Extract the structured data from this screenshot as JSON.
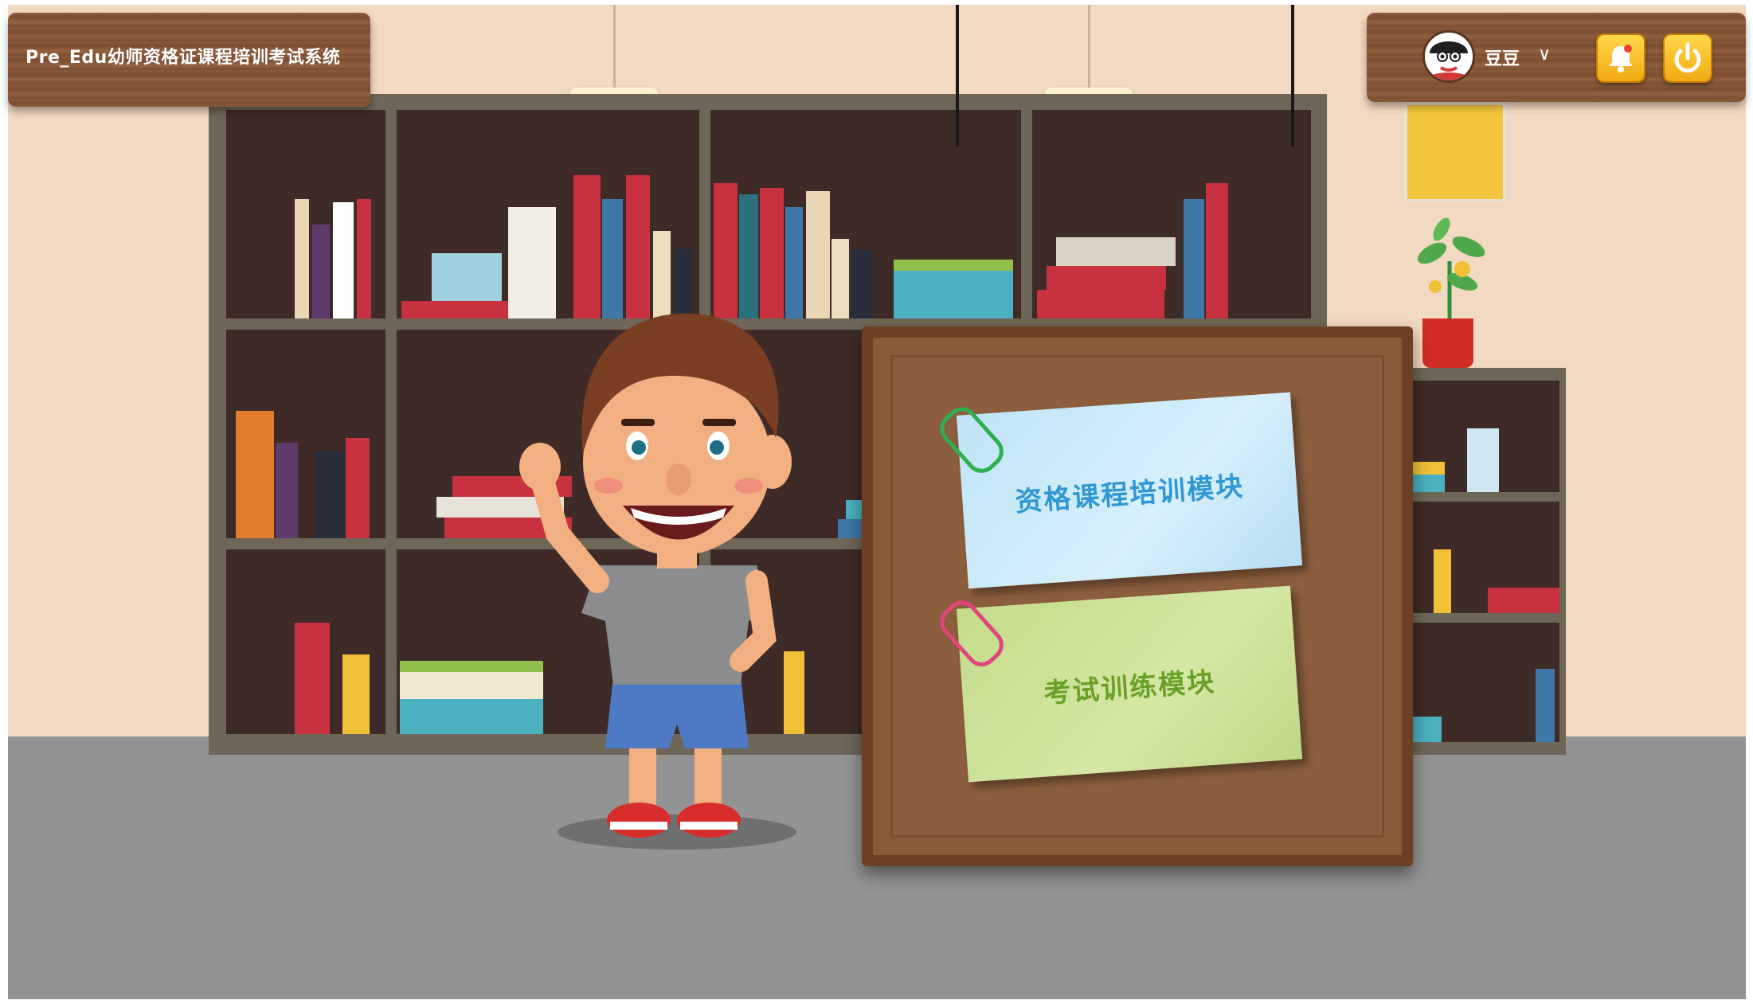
{
  "app": {
    "title": "Pre_Edu幼师资格证课程培训考试系统"
  },
  "user_bar": {
    "username": "豆豆",
    "dropdown_glyph": "∨",
    "avatar_icon": "cartoon-avatar-icon",
    "notification_icon": "bell-icon",
    "power_icon": "power-icon"
  },
  "modules": {
    "course_training": {
      "label": "资格课程培训模块",
      "color": "#2f98d3"
    },
    "exam_training": {
      "label": "考试训练模块",
      "color": "#6aa028"
    }
  },
  "colors": {
    "wall": "#f2d9c1",
    "floor": "#939393",
    "wood": "#8a5a3b",
    "button_yellow": "#f7c22d"
  }
}
